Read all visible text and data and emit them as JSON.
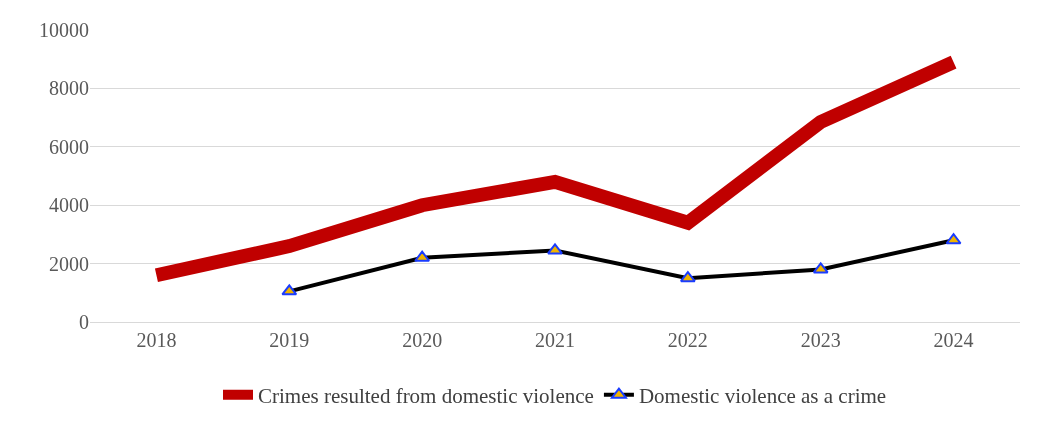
{
  "chart_data": {
    "type": "line",
    "categories": [
      "2018",
      "2019",
      "2020",
      "2021",
      "2022",
      "2023",
      "2024"
    ],
    "series": [
      {
        "name": "Crimes resulted from domestic violence",
        "color": "#c00000",
        "marker": "none",
        "values": [
          1600,
          2600,
          4000,
          4800,
          3400,
          6850,
          8900
        ]
      },
      {
        "name": "Domestic violence as a crime",
        "color": "#000000",
        "marker": "triangle",
        "values": [
          null,
          1050,
          2200,
          2450,
          1500,
          1800,
          2800
        ]
      }
    ],
    "ylim": [
      0,
      10000
    ],
    "yticks": [
      0,
      2000,
      4000,
      6000,
      8000,
      10000
    ],
    "grid": "y",
    "legend": "bottom"
  }
}
